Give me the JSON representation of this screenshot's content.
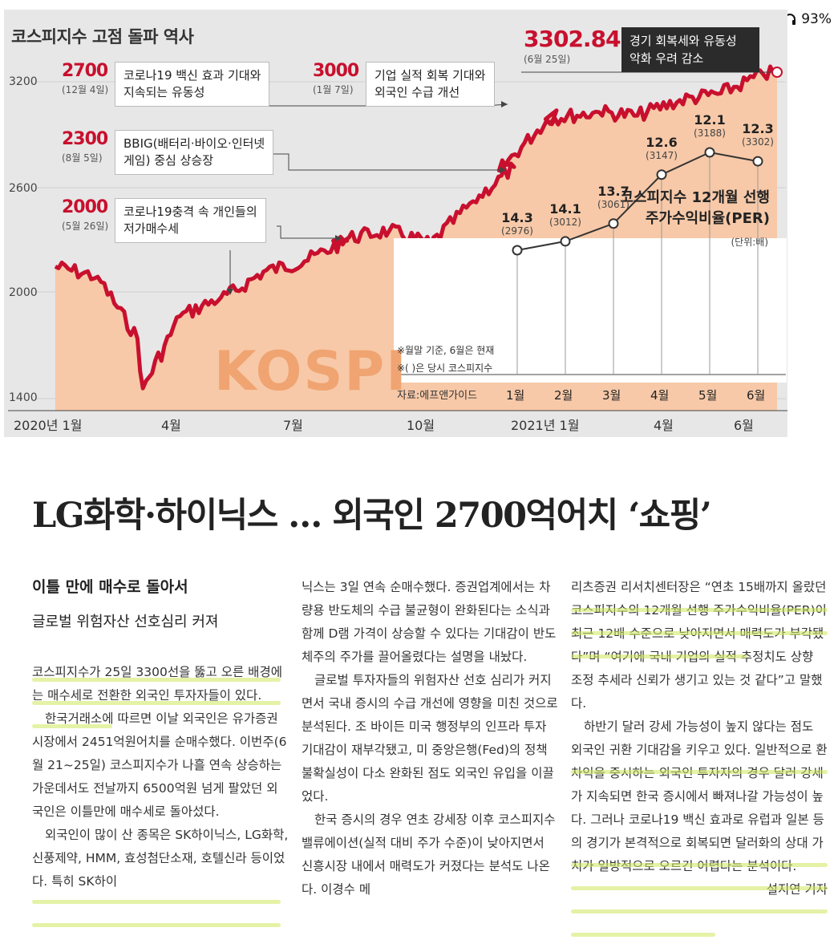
{
  "status_bar": {
    "battery": "93%",
    "icons": [
      "wifi-icon",
      "headphones-icon"
    ]
  },
  "infographic": {
    "title": "코스피지수 고점 돌파 역사",
    "watermark": "KOSPI",
    "y_ticks": [
      "3200",
      "2600",
      "2000",
      "1400"
    ],
    "x_ticks": [
      "2020년 1월",
      "4월",
      "7월",
      "10월",
      "2021년 1월",
      "4월",
      "6월"
    ],
    "callouts": [
      {
        "value": "2700",
        "date": "(12월 4일)",
        "text1": "코로나19 백신 효과 기대와",
        "text2": "지속되는 유동성"
      },
      {
        "value": "3000",
        "date": "(1월 7일)",
        "text1": "기업 실적 회복 기대와",
        "text2": "외국인 수급 개선"
      },
      {
        "value": "2300",
        "date": "(8월 5일)",
        "text1": "BBIG(배터리·바이오·인터넷",
        "text2": "게임) 중심 상승장"
      },
      {
        "value": "2000",
        "date": "(5월 26일)",
        "text1": "코로나19충격 속 개인들의",
        "text2": "저가매수세"
      }
    ],
    "peak": {
      "value": "3302.84",
      "date": "(6월 25일)",
      "note1": "경기 회복세와 유동성",
      "note2": "악화 우려 감소"
    },
    "per_panel": {
      "title1": "코스피지수 12개월 선행",
      "title2": "주가수익비율(PER)",
      "unit": "(단위:배)",
      "note1": "※월말 기준, 6월은 현재",
      "note2": "※( )은 당시 코스피지수",
      "source": "자료:에프앤가이드"
    },
    "line_color": "#c8102e",
    "area_color": "#f7c9a8"
  },
  "chart_data": [
    {
      "type": "line",
      "series_name": "KOSPI",
      "x": [
        "2020-01",
        "2020-02",
        "2020-03",
        "2020-03-19",
        "2020-04",
        "2020-05",
        "2020-05-26",
        "2020-06",
        "2020-07",
        "2020-08",
        "2020-08-05",
        "2020-09",
        "2020-10",
        "2020-11",
        "2020-12",
        "2020-12-04",
        "2021-01",
        "2021-01-07",
        "2021-02",
        "2021-03",
        "2021-04",
        "2021-05",
        "2021-06",
        "2021-06-25"
      ],
      "values": [
        2170,
        2110,
        1750,
        1460,
        1880,
        1990,
        2030,
        2140,
        2200,
        2320,
        2320,
        2380,
        2300,
        2550,
        2750,
        2730,
        3080,
        3030,
        3070,
        3050,
        3140,
        3180,
        3290,
        3302.84
      ],
      "ylim": [
        1400,
        3300
      ],
      "y_ticks": [
        1400,
        2000,
        2600,
        3200
      ]
    },
    {
      "type": "line",
      "title": "코스피지수 12개월 선행 주가수익비율(PER)",
      "categories": [
        "1월",
        "2월",
        "3월",
        "4월",
        "5월",
        "6월"
      ],
      "values": [
        14.3,
        14.1,
        13.7,
        12.6,
        12.1,
        12.3
      ],
      "labels": [
        "14.3",
        "14.1",
        "13.7",
        "12.6",
        "12.1",
        "12.3"
      ],
      "kospi_at_time": [
        "(2976)",
        "(3012)",
        "(3061)",
        "(3147)",
        "(3188)",
        "(3302)"
      ]
    }
  ],
  "article": {
    "headline": "LG화학·하이닉스 … 외국인 2700억어치 ‘쇼핑’",
    "subhead1": "이틀 만에 매수로 돌아서",
    "subhead2": "글로벌 위험자산 선호심리 커져",
    "col1": [
      "코스피지수가 25일 3300선을 뚫고 오른 배경에는 매수세로 전환한 외국인 투자자들이 있다.",
      "한국거래소에 따르면 이날 외국인은 유가증권시장에서 2451억원어치를 순매수했다. 이번주(6월 21~25일) 코스피지수가 나흘 연속 상승하는 가운데서도 전날까지 6500억원 넘게 팔았던 외국인은 이틀만에 매수세로 돌아섰다.",
      "외국인이 많이 산 종목은 SK하이닉스, LG화학, 신풍제약, HMM, 효성첨단소재, 호텔신라 등이었다. 특히 SK하이"
    ],
    "col2": [
      "닉스는 3일 연속 순매수했다. 증권업계에서는 차량용 반도체의 수급 불균형이 완화된다는 소식과 함께 D램 가격이 상승할 수 있다는 기대감이 반도체주의 주가를 끌어올렸다는 설명을 내놨다.",
      "글로벌 투자자들의 위험자산 선호 심리가 커지면서 국내 증시의 수급 개선에 영향을 미친 것으로 분석된다. 조 바이든 미국 행정부의 인프라 투자 기대감이 재부각됐고, 미 중앙은행(Fed)의 정책 불확실성이 다소 완화된 점도 외국인 유입을 이끌었다.",
      "한국 증시의 경우 연초 강세장 이후 코스피지수 밸류에이션(실적 대비 주가 수준)이 낮아지면서 신흥시장 내에서 매력도가 커졌다는 분석도 나온다. 이경수 메"
    ],
    "col3": [
      "리츠증권 리서치센터장은 “연초 15배까지 올랐던 코스피지수의 12개월 선행 주가수익비율(PER)이 최근 12배 수준으로 낮아지면서 매력도가 부각됐다”며 “여기에 국내 기업의 실적 추정치도 상향 조정 추세라 신뢰가 생기고 있는 것 같다”고 말했다.",
      "하반기 달러 강세 가능성이 높지 않다는 점도 외국인 귀환 기대감을 키우고 있다. 일반적으로 환차익을 중시하는 외국인 투자자의 경우 달러 강세가 지속되면 한국 증시에서 빠져나갈 가능성이 높다. 그러나 코로나19 백신 효과로 유럽과 일본 등의 경기가 본격적으로 회복되면 달러화의 상대 가치가 일방적으로 오르긴 어렵다는 분석이다."
    ],
    "byline": "설지연 기자"
  }
}
